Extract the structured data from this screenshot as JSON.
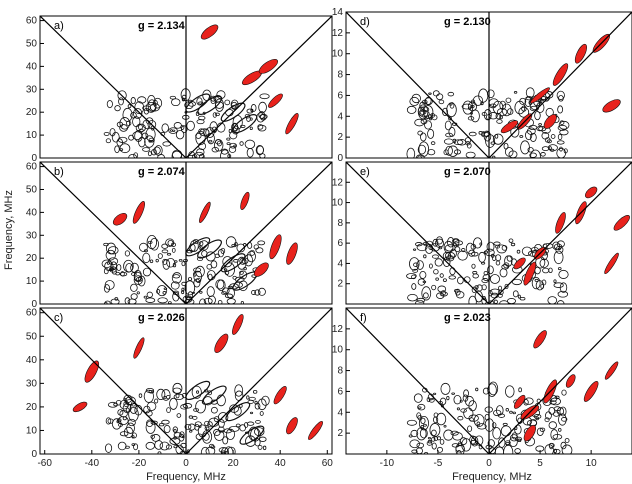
{
  "chart_data": [
    {
      "panel_label": "a)",
      "g_label": "g = 2.134",
      "type": "contour",
      "xlim": [
        -62,
        62
      ],
      "ylim": [
        0,
        62
      ],
      "yticks": [
        0,
        10,
        20,
        30,
        40,
        50,
        60
      ],
      "ridges": [
        {
          "x": 25,
          "y": 15
        },
        {
          "x": 20,
          "y": 20
        },
        {
          "x": 10,
          "y": 23
        },
        {
          "x": 5,
          "y": 24
        }
      ],
      "red_peaks": [
        {
          "x": 10,
          "y": 55
        },
        {
          "x": 28,
          "y": 35
        },
        {
          "x": 35,
          "y": 40
        },
        {
          "x": 45,
          "y": 15
        },
        {
          "x": 38,
          "y": 25
        }
      ]
    },
    {
      "panel_label": "b)",
      "g_label": "g = 2.074",
      "type": "contour",
      "xlim": [
        -62,
        62
      ],
      "ylim": [
        0,
        62
      ],
      "yticks": [
        0,
        10,
        20,
        30,
        40,
        50,
        60
      ],
      "ridges": [
        {
          "x": 25,
          "y": 10
        },
        {
          "x": 20,
          "y": 18
        },
        {
          "x": 10,
          "y": 24
        },
        {
          "x": 5,
          "y": 25
        }
      ],
      "red_peaks": [
        {
          "x": -20,
          "y": 40
        },
        {
          "x": -28,
          "y": 37
        },
        {
          "x": 8,
          "y": 40
        },
        {
          "x": 25,
          "y": 45
        },
        {
          "x": 38,
          "y": 25
        },
        {
          "x": 45,
          "y": 22
        },
        {
          "x": 32,
          "y": 15
        }
      ]
    },
    {
      "panel_label": "c)",
      "g_label": "g = 2.026",
      "type": "contour",
      "xlim": [
        -62,
        62
      ],
      "ylim": [
        0,
        62
      ],
      "yticks": [
        0,
        10,
        20,
        30,
        40,
        50,
        60
      ],
      "xticks": [
        -60,
        -40,
        -20,
        0,
        20,
        40,
        60
      ],
      "ridges": [
        {
          "x": 28,
          "y": 8
        },
        {
          "x": 22,
          "y": 18
        },
        {
          "x": 12,
          "y": 25
        },
        {
          "x": 5,
          "y": 27
        }
      ],
      "red_peaks": [
        {
          "x": -20,
          "y": 45
        },
        {
          "x": -40,
          "y": 35
        },
        {
          "x": -45,
          "y": 20
        },
        {
          "x": 15,
          "y": 47
        },
        {
          "x": 22,
          "y": 55
        },
        {
          "x": 40,
          "y": 25
        },
        {
          "x": 45,
          "y": 12
        },
        {
          "x": 55,
          "y": 10
        }
      ]
    },
    {
      "panel_label": "d)",
      "g_label": "g = 2.130",
      "type": "contour",
      "xlim": [
        -14,
        14
      ],
      "ylim": [
        0,
        14
      ],
      "yticks": [
        0,
        2,
        4,
        6,
        8,
        10,
        12,
        14
      ],
      "red_peaks": [
        {
          "x": 3.5,
          "y": 3.5
        },
        {
          "x": 6,
          "y": 3.5
        },
        {
          "x": 5,
          "y": 6
        },
        {
          "x": 7,
          "y": 8
        },
        {
          "x": 9,
          "y": 10
        },
        {
          "x": 11,
          "y": 11
        },
        {
          "x": 12,
          "y": 5
        },
        {
          "x": 2,
          "y": 3
        }
      ]
    },
    {
      "panel_label": "e)",
      "g_label": "g = 2.070",
      "type": "contour",
      "xlim": [
        -14,
        14
      ],
      "ylim": [
        0,
        14
      ],
      "yticks": [
        2,
        4,
        6,
        8,
        10,
        12
      ],
      "red_peaks": [
        {
          "x": 3,
          "y": 4
        },
        {
          "x": 5,
          "y": 5
        },
        {
          "x": 4,
          "y": 3
        },
        {
          "x": 7,
          "y": 8
        },
        {
          "x": 9,
          "y": 9
        },
        {
          "x": 10,
          "y": 11
        },
        {
          "x": 12,
          "y": 4
        },
        {
          "x": 13,
          "y": 8
        }
      ]
    },
    {
      "panel_label": "f)",
      "g_label": "g = 2.023",
      "type": "contour",
      "xlim": [
        -14,
        14
      ],
      "ylim": [
        0,
        14
      ],
      "yticks": [
        2,
        4,
        6,
        8,
        10,
        12
      ],
      "xticks": [
        -10,
        -5,
        0,
        5,
        10
      ],
      "red_peaks": [
        {
          "x": 3,
          "y": 5
        },
        {
          "x": 4,
          "y": 4
        },
        {
          "x": 6,
          "y": 6
        },
        {
          "x": 8,
          "y": 7
        },
        {
          "x": 10,
          "y": 6
        },
        {
          "x": 12,
          "y": 8
        },
        {
          "x": 5,
          "y": 11
        },
        {
          "x": 4,
          "y": 2
        }
      ]
    }
  ],
  "axis_labels": {
    "ylabel": "Frequency, MHz",
    "xlabel_left": "Frequency, MHz",
    "xlabel_right": "Frequency, MHz"
  },
  "colors": {
    "contour_black": "#111111",
    "contour_red": "#e8221c",
    "axis": "#000000"
  }
}
